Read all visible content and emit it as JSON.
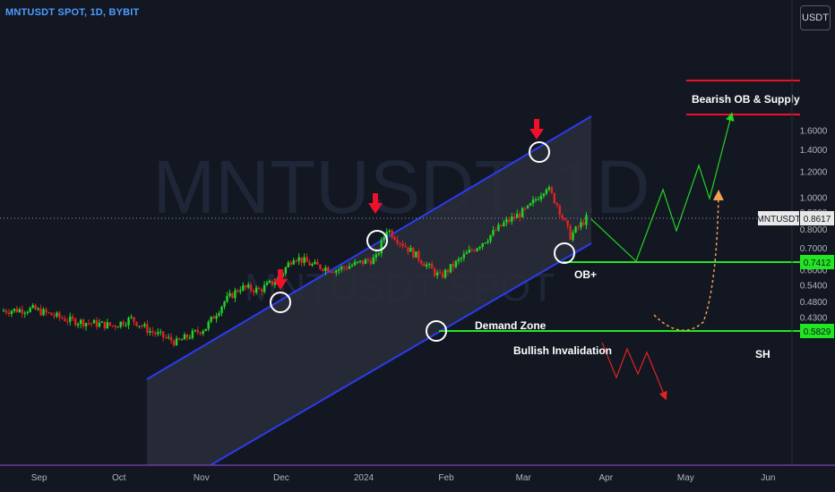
{
  "header": {
    "title": "MNTUSDT SPOT, 1D, BYBIT",
    "currency": "USDT"
  },
  "watermark": {
    "big": "MNTUSDT, 1D",
    "small": "MNTUSDT SPOT"
  },
  "price_axis": {
    "ticks": [
      "1.6000",
      "1.4000",
      "1.2000",
      "1.0000",
      "0.9000",
      "0.8000",
      "0.7000",
      "0.6000",
      "0.5400",
      "0.4800",
      "0.4300",
      "0.3850"
    ],
    "last_price_label": "MNTUSDT",
    "last_price": "0.8617",
    "level_ob": "0.7412",
    "level_demand": "0.5829"
  },
  "time_axis": {
    "ticks": [
      "Sep",
      "Oct",
      "Nov",
      "Dec",
      "2024",
      "Feb",
      "Mar",
      "Apr",
      "May",
      "Jun"
    ]
  },
  "annotations": {
    "supply": "Bearish OB & Supply",
    "demand": "Demand Zone",
    "invalidation": "Bullish Invalidation",
    "ob_plus": "OB+",
    "sh": "SH"
  },
  "colors": {
    "up": "#22d622",
    "down": "#e02323",
    "channel": "#2a3cf0",
    "level": "#22e622",
    "supply": "#f0102a",
    "axis_text": "#b2b5be"
  },
  "chart_data": {
    "type": "candlestick",
    "title": "MNTUSDT SPOT, 1D, BYBIT",
    "y_scale": "log",
    "ylim": [
      0.37,
      1.8
    ],
    "x_range": [
      "2023-08-20",
      "2024-06-30"
    ],
    "horizontal_levels": [
      {
        "label": "Bearish OB & Supply",
        "value": 1.39
      },
      {
        "label": "Bearish OB & Supply",
        "value": 1.23
      },
      {
        "label": "OB+",
        "value": 0.7412
      },
      {
        "label": "Demand Zone",
        "value": 0.5829
      }
    ],
    "channel": {
      "lower": [
        [
          "2023-10-15",
          0.34
        ],
        [
          "2024-03-31",
          0.78
        ]
      ],
      "upper": [
        [
          "2023-10-15",
          0.51
        ],
        [
          "2024-03-31",
          1.24
        ]
      ]
    },
    "swing_highs_marked": [
      [
        "2023-12-08",
        0.66
      ],
      [
        "2024-01-12",
        0.81
      ],
      [
        "2024-03-12",
        1.08
      ]
    ],
    "swing_lows_marked": [
      [
        "2024-02-01",
        0.57
      ],
      [
        "2024-03-21",
        0.76
      ]
    ],
    "series": [
      {
        "name": "MNTUSDT",
        "close_path": [
          [
            "2023-08-20",
            0.45
          ],
          [
            "2023-09-01",
            0.455
          ],
          [
            "2023-09-15",
            0.42
          ],
          [
            "2023-10-01",
            0.405
          ],
          [
            "2023-10-08",
            0.425
          ],
          [
            "2023-10-15",
            0.39
          ],
          [
            "2023-10-25",
            0.36
          ],
          [
            "2023-11-05",
            0.4
          ],
          [
            "2023-11-12",
            0.48
          ],
          [
            "2023-11-18",
            0.53
          ],
          [
            "2023-11-25",
            0.52
          ],
          [
            "2023-12-02",
            0.56
          ],
          [
            "2023-12-08",
            0.66
          ],
          [
            "2023-12-15",
            0.62
          ],
          [
            "2023-12-24",
            0.6
          ],
          [
            "2024-01-02",
            0.63
          ],
          [
            "2024-01-08",
            0.65
          ],
          [
            "2024-01-12",
            0.8
          ],
          [
            "2024-01-18",
            0.72
          ],
          [
            "2024-01-26",
            0.63
          ],
          [
            "2024-02-01",
            0.57
          ],
          [
            "2024-02-10",
            0.66
          ],
          [
            "2024-02-18",
            0.74
          ],
          [
            "2024-02-25",
            0.83
          ],
          [
            "2024-03-05",
            0.92
          ],
          [
            "2024-03-12",
            1.08
          ],
          [
            "2024-03-16",
            0.95
          ],
          [
            "2024-03-21",
            0.76
          ],
          [
            "2024-03-27",
            0.86
          ]
        ]
      }
    ],
    "last_price": 0.8617
  }
}
